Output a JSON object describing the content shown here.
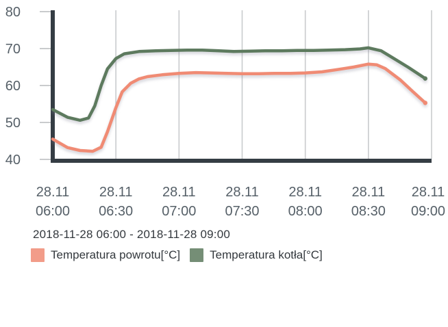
{
  "colors": {
    "background": "#ffffff",
    "axis_dark": "#353d44",
    "grid_light": "#c9cbcd",
    "axis_label_text": "#566068",
    "body_text": "#33383d",
    "series_powrotu": "#f08b74",
    "series_kotla": "#5d7a5e"
  },
  "subtitle": "2018-11-28 06:00 - 2018-11-28 09:00",
  "legend": {
    "items": [
      {
        "label": "Temperatura powrotu[°C]",
        "color": "#f08b74"
      },
      {
        "label": "Temperatura kotła[°C]",
        "color": "#5d7a5e"
      }
    ]
  },
  "chart_data": {
    "type": "line",
    "title": "",
    "subtitle": "2018-11-28 06:00 - 2018-11-28 09:00",
    "xlabel": "",
    "ylabel": "",
    "x_unit": "time (minutes after 06:00, 2018-11-28)",
    "x_range_minutes": [
      0,
      180
    ],
    "ylim": [
      40,
      80
    ],
    "grid": {
      "vertical": true,
      "horizontal": false
    },
    "legend_position": "bottom-left",
    "y_axis": {
      "ticks": [
        80,
        70,
        60,
        50,
        40
      ]
    },
    "x_axis": {
      "tick_minutes": [
        0,
        30,
        60,
        90,
        120,
        150,
        180
      ],
      "tick_labels": [
        [
          "28.11",
          "06:00"
        ],
        [
          "28.11",
          "06:30"
        ],
        [
          "28.11",
          "07:00"
        ],
        [
          "28.11",
          "07:30"
        ],
        [
          "28.11",
          "08:00"
        ],
        [
          "28.11",
          "08:30"
        ],
        [
          "28.11",
          "09:00"
        ]
      ]
    },
    "series": [
      {
        "name": "Temperatura powrotu[°C]",
        "color": "#f08b74",
        "points": [
          [
            0,
            45.5
          ],
          [
            7,
            43.2
          ],
          [
            13,
            42.4
          ],
          [
            19,
            42.2
          ],
          [
            23,
            43.3
          ],
          [
            26,
            47.5
          ],
          [
            30,
            54.0
          ],
          [
            33,
            58.3
          ],
          [
            37,
            60.6
          ],
          [
            41,
            61.8
          ],
          [
            45,
            62.4
          ],
          [
            52,
            62.9
          ],
          [
            60,
            63.3
          ],
          [
            68,
            63.5
          ],
          [
            75,
            63.4
          ],
          [
            83,
            63.3
          ],
          [
            90,
            63.2
          ],
          [
            98,
            63.2
          ],
          [
            105,
            63.3
          ],
          [
            113,
            63.3
          ],
          [
            120,
            63.4
          ],
          [
            128,
            63.7
          ],
          [
            135,
            64.3
          ],
          [
            143,
            65.0
          ],
          [
            150,
            65.8
          ],
          [
            154,
            65.6
          ],
          [
            158,
            64.6
          ],
          [
            165,
            61.6
          ],
          [
            171,
            58.4
          ],
          [
            177,
            55.3
          ]
        ]
      },
      {
        "name": "Temperatura kotła[°C]",
        "color": "#5d7a5e",
        "points": [
          [
            0,
            53.5
          ],
          [
            7,
            51.4
          ],
          [
            13,
            50.6
          ],
          [
            17,
            51.2
          ],
          [
            20,
            54.5
          ],
          [
            23,
            60.0
          ],
          [
            26,
            64.5
          ],
          [
            30,
            67.3
          ],
          [
            34,
            68.6
          ],
          [
            41,
            69.2
          ],
          [
            49,
            69.4
          ],
          [
            56,
            69.5
          ],
          [
            64,
            69.6
          ],
          [
            71,
            69.6
          ],
          [
            79,
            69.4
          ],
          [
            86,
            69.2
          ],
          [
            94,
            69.3
          ],
          [
            101,
            69.4
          ],
          [
            109,
            69.4
          ],
          [
            116,
            69.5
          ],
          [
            124,
            69.5
          ],
          [
            131,
            69.6
          ],
          [
            139,
            69.7
          ],
          [
            146,
            69.9
          ],
          [
            150,
            70.2
          ],
          [
            156,
            69.4
          ],
          [
            161,
            67.7
          ],
          [
            169,
            64.9
          ],
          [
            177,
            61.9
          ]
        ]
      }
    ]
  }
}
